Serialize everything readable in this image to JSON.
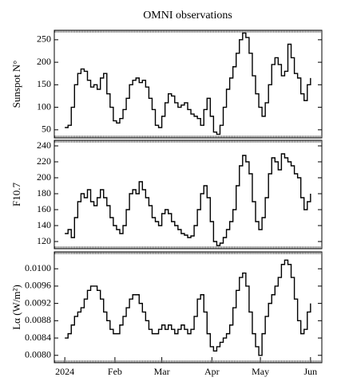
{
  "chart_data": [
    {
      "type": "line",
      "title": "OMNI observations",
      "ylabel": "Sunspot N°",
      "color": "#000000",
      "x": [
        0,
        2,
        4,
        6,
        8,
        10,
        12,
        14,
        16,
        18,
        20,
        22,
        24,
        26,
        28,
        30,
        32,
        34,
        36,
        38,
        40,
        42,
        44,
        46,
        48,
        50,
        52,
        54,
        56,
        58,
        60,
        62,
        64,
        66,
        68,
        70,
        72,
        74,
        76,
        78,
        80,
        82,
        84,
        86,
        88,
        90,
        92,
        94,
        96,
        98,
        100,
        102,
        104,
        106,
        108,
        110,
        112,
        114,
        116,
        118,
        120,
        122,
        124,
        126,
        128,
        130,
        132,
        134,
        136,
        138,
        140,
        142,
        144,
        146,
        148,
        150,
        152
      ],
      "values": [
        55,
        60,
        100,
        150,
        175,
        185,
        180,
        160,
        145,
        150,
        140,
        165,
        175,
        130,
        100,
        70,
        65,
        75,
        95,
        120,
        150,
        160,
        165,
        155,
        160,
        145,
        120,
        95,
        60,
        55,
        80,
        110,
        130,
        125,
        110,
        100,
        105,
        110,
        95,
        85,
        80,
        75,
        60,
        95,
        120,
        80,
        45,
        40,
        60,
        100,
        140,
        165,
        190,
        220,
        250,
        265,
        255,
        220,
        170,
        130,
        100,
        80,
        110,
        150,
        195,
        210,
        195,
        170,
        180,
        240,
        210,
        175,
        165,
        130,
        115,
        150,
        165
      ],
      "xlim": [
        -6.5,
        159
      ],
      "ylim": [
        32,
        271
      ],
      "yticks": [
        50,
        100,
        150,
        200,
        250
      ]
    },
    {
      "type": "line",
      "ylabel": "F10.7",
      "color": "#000000",
      "x": [
        0,
        2,
        4,
        6,
        8,
        10,
        12,
        14,
        16,
        18,
        20,
        22,
        24,
        26,
        28,
        30,
        32,
        34,
        36,
        38,
        40,
        42,
        44,
        46,
        48,
        50,
        52,
        54,
        56,
        58,
        60,
        62,
        64,
        66,
        68,
        70,
        72,
        74,
        76,
        78,
        80,
        82,
        84,
        86,
        88,
        90,
        92,
        94,
        96,
        98,
        100,
        102,
        104,
        106,
        108,
        110,
        112,
        114,
        116,
        118,
        120,
        122,
        124,
        126,
        128,
        130,
        132,
        134,
        136,
        138,
        140,
        142,
        144,
        146,
        148,
        150,
        152
      ],
      "values": [
        130,
        135,
        125,
        150,
        170,
        180,
        175,
        185,
        170,
        165,
        175,
        185,
        175,
        165,
        150,
        140,
        135,
        130,
        140,
        160,
        180,
        185,
        180,
        195,
        185,
        175,
        165,
        150,
        145,
        140,
        155,
        160,
        155,
        145,
        140,
        135,
        130,
        128,
        125,
        127,
        140,
        160,
        180,
        190,
        175,
        145,
        120,
        115,
        118,
        125,
        135,
        145,
        160,
        190,
        215,
        228,
        220,
        205,
        170,
        145,
        135,
        150,
        175,
        205,
        225,
        220,
        210,
        230,
        225,
        220,
        215,
        205,
        200,
        175,
        160,
        170,
        180
      ],
      "xlim": [
        -6.5,
        159
      ],
      "ylim": [
        111,
        247
      ],
      "yticks": [
        120,
        140,
        160,
        180,
        200,
        220,
        240
      ]
    },
    {
      "type": "line",
      "ylabel": "Lα (W/m²)",
      "color": "#000000",
      "x": [
        0,
        2,
        4,
        6,
        8,
        10,
        12,
        14,
        16,
        18,
        20,
        22,
        24,
        26,
        28,
        30,
        32,
        34,
        36,
        38,
        40,
        42,
        44,
        46,
        48,
        50,
        52,
        54,
        56,
        58,
        60,
        62,
        64,
        66,
        68,
        70,
        72,
        74,
        76,
        78,
        80,
        82,
        84,
        86,
        88,
        90,
        92,
        94,
        96,
        98,
        100,
        102,
        104,
        106,
        108,
        110,
        112,
        114,
        116,
        118,
        120,
        122,
        124,
        126,
        128,
        130,
        132,
        134,
        136,
        138,
        140,
        142,
        144,
        146,
        148,
        150,
        152
      ],
      "values": [
        0.0084,
        0.0085,
        0.0087,
        0.0089,
        0.009,
        0.0091,
        0.0093,
        0.0095,
        0.0096,
        0.0096,
        0.0095,
        0.0093,
        0.009,
        0.0088,
        0.0086,
        0.0085,
        0.0085,
        0.0087,
        0.0089,
        0.0091,
        0.0093,
        0.0094,
        0.0094,
        0.0092,
        0.009,
        0.0088,
        0.0086,
        0.0085,
        0.0085,
        0.0086,
        0.0087,
        0.0086,
        0.0087,
        0.0086,
        0.0085,
        0.0086,
        0.0087,
        0.0086,
        0.0085,
        0.0086,
        0.0089,
        0.0093,
        0.0094,
        0.009,
        0.0085,
        0.0082,
        0.0081,
        0.0082,
        0.0083,
        0.0084,
        0.0085,
        0.0087,
        0.0091,
        0.0095,
        0.0098,
        0.0099,
        0.0096,
        0.009,
        0.0085,
        0.0082,
        0.008,
        0.0085,
        0.0089,
        0.0092,
        0.0094,
        0.0096,
        0.0098,
        0.0101,
        0.0102,
        0.0101,
        0.0098,
        0.0093,
        0.0088,
        0.0085,
        0.0086,
        0.009,
        0.0092
      ],
      "xlim": [
        -6.5,
        159
      ],
      "ylim": [
        0.00783,
        0.01039
      ],
      "yticks": [
        {
          "value": 0.008,
          "label": "0.0080"
        },
        0.0084,
        0.0088,
        0.0092,
        0.0096,
        {
          "value": 0.01,
          "label": "0.0100"
        }
      ],
      "xticks": [
        {
          "value": 0,
          "label": "2024"
        },
        {
          "value": 31,
          "label": "Feb"
        },
        {
          "value": 60,
          "label": "Mar"
        },
        {
          "value": 91,
          "label": "Apr"
        },
        {
          "value": 121,
          "label": "May"
        },
        {
          "value": 152,
          "label": "Jun"
        }
      ]
    }
  ]
}
